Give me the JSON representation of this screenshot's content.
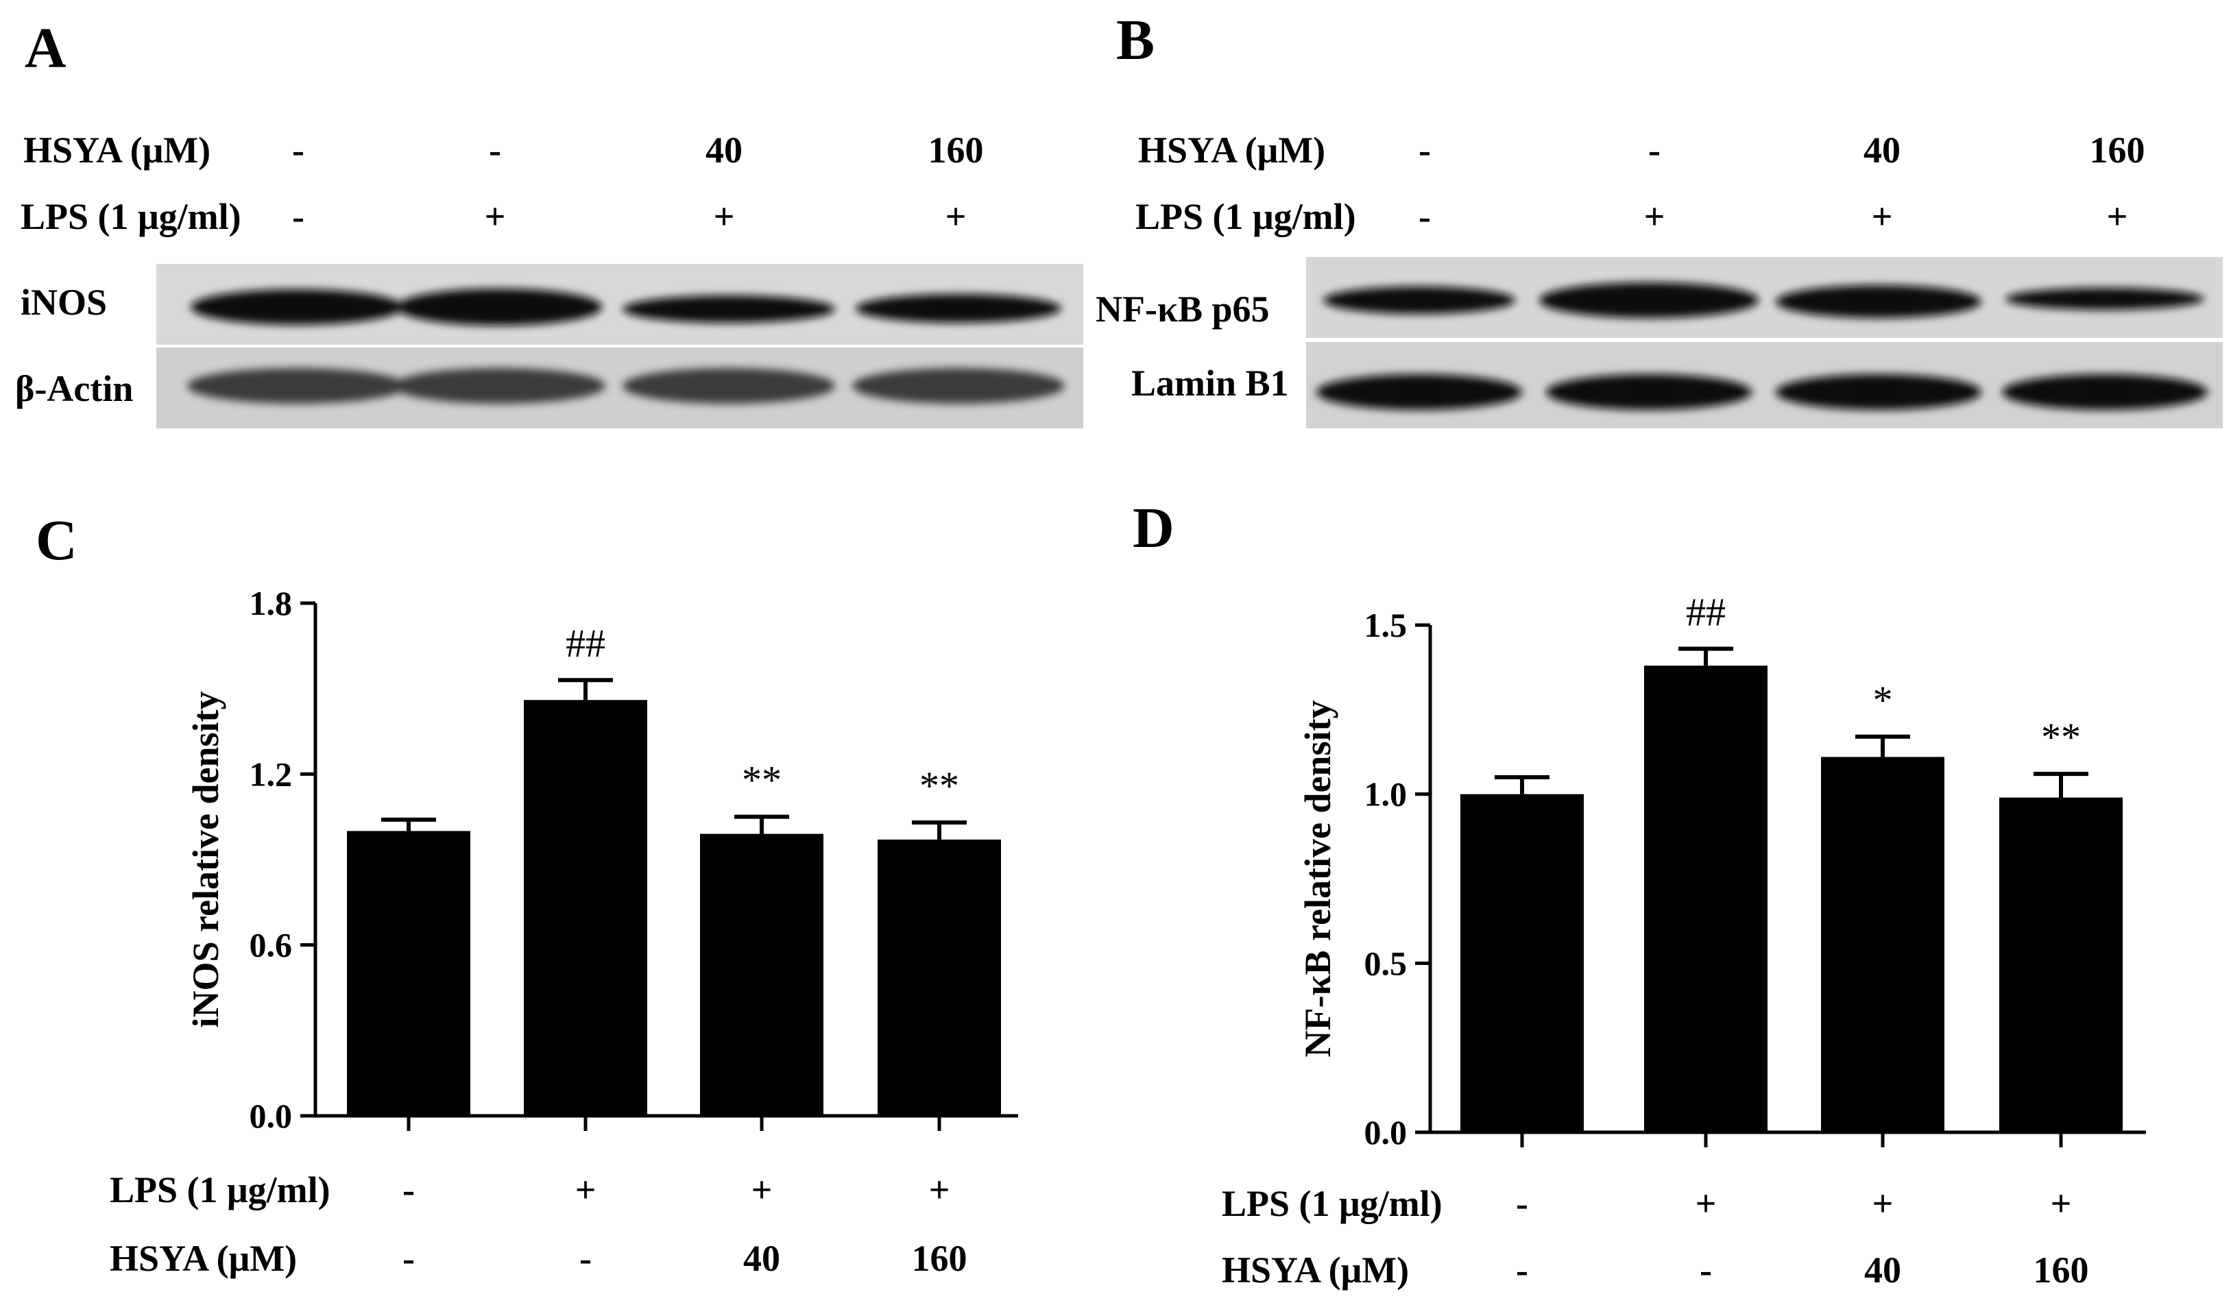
{
  "panels": {
    "A": {
      "letter": "A",
      "hsya_label": "HSYA (μM)",
      "lps_label": "LPS (1 μg/ml)",
      "hsya": [
        "-",
        "-",
        "40",
        "160"
      ],
      "lps": [
        "-",
        "+",
        "+",
        "+"
      ],
      "bands": [
        "iNOS",
        "β-Actin"
      ]
    },
    "B": {
      "letter": "B",
      "hsya_label": "HSYA (μM)",
      "lps_label": "LPS (1 μg/ml)",
      "hsya": [
        "-",
        "-",
        "40",
        "160"
      ],
      "lps": [
        "-",
        "+",
        "+",
        "+"
      ],
      "bands": [
        "NF-κB p65",
        "Lamin B1"
      ]
    },
    "C": {
      "letter": "C",
      "lps_label": "LPS (1 μg/ml)",
      "hsya_label": "HSYA (μM)",
      "lps": [
        "-",
        "+",
        "+",
        "+"
      ],
      "hsya": [
        "-",
        "-",
        "40",
        "160"
      ]
    },
    "D": {
      "letter": "D",
      "lps_label": "LPS (1 μg/ml)",
      "hsya_label": "HSYA (μM)",
      "lps": [
        "-",
        "+",
        "+",
        "+"
      ],
      "hsya": [
        "-",
        "-",
        "40",
        "160"
      ]
    }
  },
  "chart_data": [
    {
      "type": "bar",
      "panel": "C",
      "ylabel": "iNOS relative density",
      "ylim": [
        0,
        1.8
      ],
      "yticks": [
        "0.0",
        "0.6",
        "1.2",
        "1.8"
      ],
      "categories": [
        "-/-",
        "+/-",
        "+/40",
        "+/160"
      ],
      "values": [
        1.0,
        1.46,
        0.99,
        0.97
      ],
      "errors": [
        0.04,
        0.07,
        0.06,
        0.06
      ],
      "annotations": [
        "",
        "##",
        "**",
        "**"
      ],
      "color": "#000000"
    },
    {
      "type": "bar",
      "panel": "D",
      "ylabel": "NF-κB relative density",
      "ylim": [
        0,
        1.5
      ],
      "yticks": [
        "0.0",
        "0.5",
        "1.0",
        "1.5"
      ],
      "categories": [
        "-/-",
        "+/-",
        "+/40",
        "+/160"
      ],
      "values": [
        1.0,
        1.38,
        1.11,
        0.99
      ],
      "errors": [
        0.05,
        0.05,
        0.06,
        0.07
      ],
      "annotations": [
        "",
        "##",
        "*",
        "**"
      ],
      "color": "#000000"
    }
  ]
}
